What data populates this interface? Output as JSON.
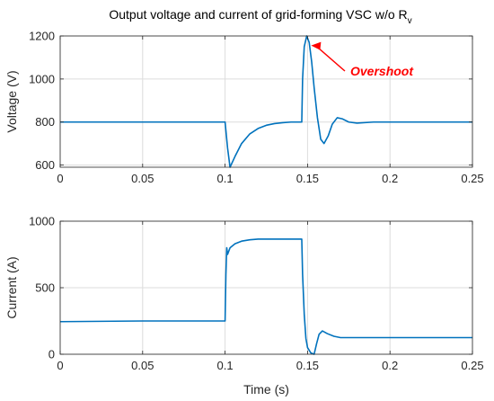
{
  "chart_data": [
    {
      "type": "line",
      "title": "Output voltage and current of grid-forming VSC w/o R",
      "title_subscript": "v",
      "xlabel": "",
      "ylabel": "Voltage (V)",
      "xlim": [
        0,
        0.25
      ],
      "ylim": [
        590,
        1200
      ],
      "xticks": [
        0,
        0.05,
        0.1,
        0.15,
        0.2,
        0.25
      ],
      "xtick_labels": [
        "0",
        "0.05",
        "0.1",
        "0.15",
        "0.2",
        "0.25"
      ],
      "yticks": [
        600,
        800,
        1000,
        1200
      ],
      "ytick_labels": [
        "600",
        "800",
        "1000",
        "1200"
      ],
      "grid": true,
      "line_color": "#0072BD",
      "annotation": {
        "text": "Overshoot",
        "color": "#ff0000",
        "x": 0.15,
        "y": 1160
      },
      "series": [
        {
          "x": [
            0,
            0.05,
            0.0995,
            0.1,
            0.1015,
            0.103,
            0.106,
            0.11,
            0.115,
            0.12,
            0.125,
            0.13,
            0.135,
            0.14,
            0.1465,
            0.147,
            0.148,
            0.1495,
            0.151,
            0.1525,
            0.154,
            0.156,
            0.158,
            0.16,
            0.1625,
            0.165,
            0.168,
            0.171,
            0.175,
            0.18,
            0.19,
            0.2,
            0.25
          ],
          "y": [
            800,
            800,
            800,
            800,
            680,
            590,
            640,
            700,
            745,
            770,
            785,
            793,
            797,
            800,
            800,
            1000,
            1150,
            1200,
            1170,
            1080,
            960,
            820,
            720,
            700,
            735,
            790,
            820,
            815,
            800,
            795,
            800,
            800,
            800
          ]
        }
      ]
    },
    {
      "type": "line",
      "xlabel": "Time (s)",
      "ylabel": "Current (A)",
      "xlim": [
        0,
        0.25
      ],
      "ylim": [
        0,
        1000
      ],
      "xticks": [
        0,
        0.05,
        0.1,
        0.15,
        0.2,
        0.25
      ],
      "xtick_labels": [
        "0",
        "0.05",
        "0.1",
        "0.15",
        "0.2",
        "0.25"
      ],
      "yticks": [
        0,
        500,
        1000
      ],
      "ytick_labels": [
        "0",
        "500",
        "1000"
      ],
      "grid": true,
      "line_color": "#0072BD",
      "series": [
        {
          "x": [
            0,
            0.05,
            0.0995,
            0.1,
            0.1005,
            0.101,
            0.1015,
            0.103,
            0.106,
            0.11,
            0.115,
            0.12,
            0.13,
            0.14,
            0.1465,
            0.147,
            0.148,
            0.149,
            0.15,
            0.152,
            0.154,
            0.1555,
            0.157,
            0.159,
            0.162,
            0.166,
            0.17,
            0.18,
            0.2,
            0.25
          ],
          "y": [
            245,
            250,
            250,
            250,
            600,
            800,
            750,
            800,
            830,
            850,
            860,
            865,
            865,
            865,
            865,
            600,
            300,
            120,
            50,
            10,
            0,
            80,
            150,
            175,
            155,
            135,
            125,
            125,
            125,
            125
          ]
        }
      ]
    }
  ]
}
